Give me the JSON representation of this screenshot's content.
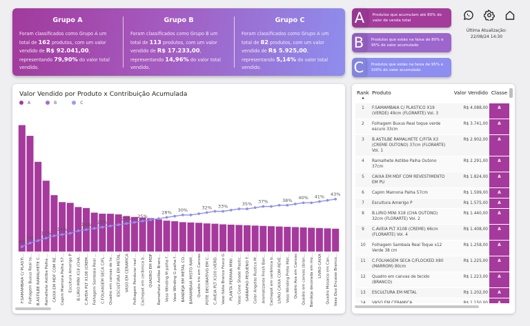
{
  "groups": [
    {
      "title": "Grupo A",
      "t1": "Foram classificados como Grupo A um total de ",
      "count": "162",
      "t2": " produtos, com um valor vendido de ",
      "value": "R$ 92.041,00",
      "t3": ", representando ",
      "pct": "79,90%",
      "t4": " do valor total vendido."
    },
    {
      "title": "Grupo B",
      "t1": "Foram classificados como Grupo B um total de ",
      "count": "113",
      "t2": " produtos, com um valor vendido de ",
      "value": "R$ 17.233,00",
      "t3": ", representando ",
      "pct": "14,96%",
      "t4": " do valor total vendido."
    },
    {
      "title": "Grupo C",
      "t1": "Foram classificados como Grupo A um total de ",
      "count": "82",
      "t2": " produtos, com um valor vendido de ",
      "value": "R$ 5.925,00",
      "t3": ", representando ",
      "pct": "5,14%",
      "t4": " do valor total vendido."
    }
  ],
  "cards": [
    {
      "letter": "A",
      "text": "Produtos que acumulam até 80% do valor de venda total",
      "color": "#a43c9c"
    },
    {
      "letter": "B",
      "text": "Produtos que estão na faixa de 80% e 95% do valor acumulado",
      "color": "#9c66cc"
    },
    {
      "letter": "C",
      "text": "Produtos que estão na faixa de 95% e 100% do valor acumulado",
      "color": "#8d8ef0"
    }
  ],
  "header_icons": [
    "whatsapp-icon",
    "gear-icon",
    "home-icon"
  ],
  "update": {
    "label": "Última Atualização:",
    "value": "22/08/24 14:30"
  },
  "chart_data": {
    "type": "bar",
    "title": "Valor Vendido por Produto x Contribuição Acumulada",
    "legend": [
      {
        "name": "A",
        "color": "#a53a9c"
      },
      {
        "name": "B",
        "color": "#a36bd0"
      },
      {
        "name": "C",
        "color": "#9a9cf0"
      }
    ],
    "legend_position": "top-left",
    "grid": false,
    "ylim": [
      0,
      4100
    ],
    "y2lim": [
      0,
      104
    ],
    "categories": [
      "F.SAMAMBAIA C/ PLASTI...",
      "Folhagem Buxus Real to...",
      "B.ASTILBE RAMALHETE C...",
      "Ramalhete Astilbe Palha ...",
      "CAIXA EM MDF COM RE...",
      "Capim Mamona Palha 57...",
      "Escultura Amerigo P",
      "B.LIRIO MINI X18 (CHA...",
      "C.AVEIA PLT X108 (CREM...",
      "Folhagem Sambaia Real ...",
      "C.FOLHAGEM SECA C/FL...",
      "Quadro em canvas de te...",
      "ESCULTURA EM METAL",
      "VASO EM CERAMICA",
      "Folhagem Pendurar real ...",
      "Cachepot em cerâmica b...",
      "QUADRO EM MDF",
      "Ramalhete Astilbe Branc...",
      "Vaso Winding M palha f...",
      "Vaso Winding G palha f...",
      "BANDEJA EM METAL CO...",
      "BAMAMBAIA MISTO RAM...",
      "Quadro Iris em Canvas",
      "POTE DECORATIVO EM C...",
      "C.AVEIA PLT X100 (VERD...",
      "Vaso Itália Branco Fosco G",
      "PLANTA PERMAN MINI ...",
      "Vaso Cone Shade Plastic...",
      "GARRAFAO PEQUENO T...",
      "Colar Angelas Rustico M...",
      "Aromatizante Fresh Ban...",
      "Cachepot em cerâmica b...",
      "LIVRO CAIXA COM REVE...",
      "Vaso Winding Preto Mat...",
      "Quadro Ava em Canvas",
      "Quadro em canvas (bran...",
      "Bandeja decorada em mo...",
      "LIVRO CAIXA",
      "Quadro Mosaico em Can...",
      "Vaso Duo Encaixe Branco..."
    ],
    "series": [
      {
        "name": "Valor Vendido",
        "values": [
          4088,
          3741,
          2902,
          2291,
          1824,
          1599,
          1575,
          1440,
          1408,
          1258,
          1225,
          1223,
          1202,
          1150,
          1120,
          1100,
          1080,
          1040,
          1000,
          980,
          950,
          940,
          930,
          910,
          900,
          880,
          870,
          860,
          850,
          840,
          830,
          820,
          810,
          800,
          790,
          780,
          770,
          760,
          750,
          740
        ]
      },
      {
        "name": "Contribuição Acumulada",
        "values": [
          4,
          7,
          9,
          11,
          13,
          14,
          15,
          17,
          18,
          19,
          20,
          21,
          22,
          23,
          24,
          25,
          26,
          27,
          28,
          29,
          30,
          30,
          31,
          32,
          33,
          33,
          34,
          35,
          35,
          36,
          37,
          37,
          38,
          38,
          39,
          40,
          40,
          41,
          42,
          43
        ],
        "labels": [
          "4%",
          "7%",
          "",
          "11%",
          "",
          "14%",
          "",
          "",
          "18%",
          "",
          "20%",
          "",
          "",
          "23%",
          "",
          "25%",
          "",
          "",
          "28%",
          "",
          "30%",
          "",
          "",
          "32%",
          "",
          "33%",
          "",
          "",
          "35%",
          "",
          "37%",
          "",
          "",
          "38%",
          "",
          "40%",
          "",
          "41%",
          "",
          "43%"
        ]
      }
    ]
  },
  "table": {
    "headers": {
      "rank": "Rank",
      "product": "Produto",
      "value": "Valor Vendido",
      "class": "Classe"
    },
    "sort_indicator": "▲",
    "rows": [
      {
        "rank": "1",
        "product": "F.SAMAMBAIA C/ PLASTICO X19 (VERDE) 49cm (FLORARTE) Vol. 3",
        "value": "R$ 4.088,00",
        "class": "A"
      },
      {
        "rank": "2",
        "product": "Folhagem Buxus Real toque verde escuro 33cm",
        "value": "R$ 3.741,00",
        "class": "A"
      },
      {
        "rank": "3",
        "product": "B.ASTILBE RAMALHETE C/FITA X3 (CREME OUTONO) 37cm (FLORARTE) Vol. 1",
        "value": "R$ 2.902,00",
        "class": "A"
      },
      {
        "rank": "4",
        "product": "Ramalhete Astilbe Palha Outono 37cm",
        "value": "R$ 2.291,00",
        "class": "A"
      },
      {
        "rank": "5",
        "product": "CAIXA EM MDF COM REVESTIMENTO EM PU",
        "value": "R$ 1.824,00",
        "class": "A"
      },
      {
        "rank": "6",
        "product": "Capim Mamona Palha 57cm",
        "value": "R$ 1.599,00",
        "class": "A"
      },
      {
        "rank": "7",
        "product": "Escultura Amerigo P",
        "value": "R$ 1.575,00",
        "class": "A"
      },
      {
        "rank": "8",
        "product": "B.LIRIO MINI X18 (CHA OUTONO) 32cm (FLORARTE) Vol. 2",
        "value": "R$ 1.440,00",
        "class": "A"
      },
      {
        "rank": "9",
        "product": "C.AVEIA PLT X108 (CREME) 66cm (FLORARTE) Vol. 4",
        "value": "R$ 1.408,00",
        "class": "A"
      },
      {
        "rank": "10",
        "product": "Folhagem Sambaia Real Toque x12 Verde 38 cm",
        "value": "R$ 1.258,00",
        "class": "A"
      },
      {
        "rank": "11",
        "product": "C.FOLHAGEM SECA C/FLOCKED X80 (MARROM) 80cm",
        "value": "R$ 1.225,00",
        "class": "A"
      },
      {
        "rank": "12",
        "product": "Quadro em canvas de tecido (BRANCO)",
        "value": "R$ 1.223,00",
        "class": "A"
      },
      {
        "rank": "13",
        "product": "ESCULTURA EM METAL",
        "value": "R$ 1.202,00",
        "class": "A"
      },
      {
        "rank": "14",
        "product": "VASO EM CERAMICA",
        "value": "R$ 1.150,00",
        "class": "A"
      }
    ]
  }
}
